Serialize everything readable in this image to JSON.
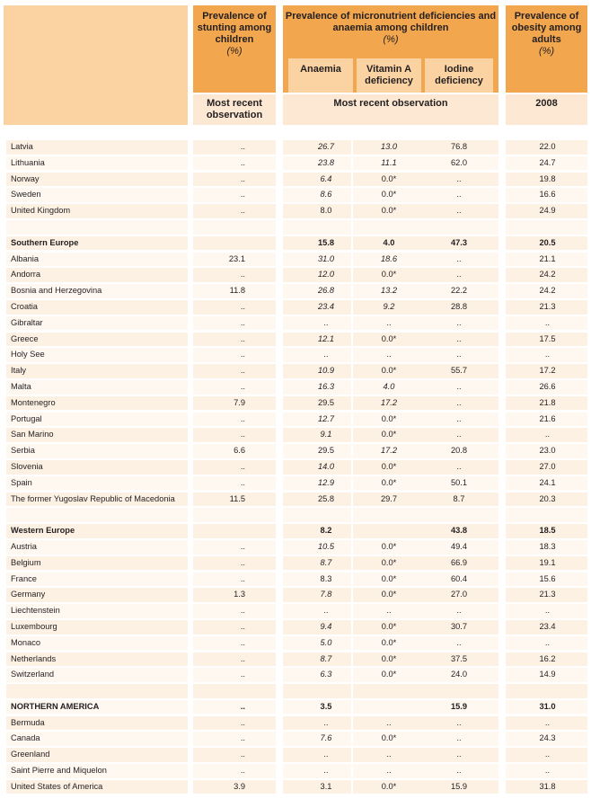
{
  "headers": {
    "stunting": {
      "title": "Prevalence of stunting among children",
      "unit": "(%)",
      "obs": "Most recent observation"
    },
    "micro": {
      "title": "Prevalence of micronutrient deficiencies and anaemia among children",
      "unit": "(%)",
      "obs": "Most recent observation",
      "sub": [
        "Anaemia",
        "Vitamin A deficiency",
        "Iodine deficiency"
      ]
    },
    "obesity": {
      "title": "Prevalence of obesity among adults",
      "unit": "(%)",
      "obs": "2008"
    }
  },
  "rows": [
    {
      "name": "Latvia",
      "stunt": "..",
      "an": "26.7",
      "an_i": true,
      "va": "13.0",
      "va_i": true,
      "io": "76.8",
      "ob": "22.0"
    },
    {
      "name": "Lithuania",
      "stunt": "..",
      "an": "23.8",
      "an_i": true,
      "va": "11.1",
      "va_i": true,
      "io": "62.0",
      "ob": "24.7"
    },
    {
      "name": "Norway",
      "stunt": "..",
      "an": "6.4",
      "an_i": true,
      "va": "0.0*",
      "io": "..",
      "ob": "19.8"
    },
    {
      "name": "Sweden",
      "stunt": "..",
      "an": "8.6",
      "an_i": true,
      "va": "0.0*",
      "io": "..",
      "ob": "16.6"
    },
    {
      "name": "United Kingdom",
      "stunt": "..",
      "an": "8.0",
      "va": "0.0*",
      "io": "..",
      "ob": "24.9"
    },
    {
      "name": "",
      "stunt": "",
      "an": "",
      "va": "",
      "io": "",
      "ob": ""
    },
    {
      "name": "Southern Europe",
      "bold": true,
      "stunt": "",
      "an": "15.8",
      "va": "4.0",
      "io": "47.3",
      "ob": "20.5"
    },
    {
      "name": "Albania",
      "stunt": "23.1",
      "an": "31.0",
      "an_i": true,
      "va": "18.6",
      "va_i": true,
      "io": "..",
      "ob": "21.1"
    },
    {
      "name": "Andorra",
      "stunt": "..",
      "an": "12.0",
      "an_i": true,
      "va": "0.0*",
      "io": "..",
      "ob": "24.2"
    },
    {
      "name": "Bosnia and Herzegovina",
      "stunt": "11.8",
      "an": "26.8",
      "an_i": true,
      "va": "13.2",
      "va_i": true,
      "io": "22.2",
      "ob": "24.2"
    },
    {
      "name": "Croatia",
      "stunt": "..",
      "an": "23.4",
      "an_i": true,
      "va": "9.2",
      "va_i": true,
      "io": "28.8",
      "ob": "21.3"
    },
    {
      "name": "Gibraltar",
      "stunt": "..",
      "an": "..",
      "va": "..",
      "io": "..",
      "ob": ".."
    },
    {
      "name": "Greece",
      "stunt": "..",
      "an": "12.1",
      "an_i": true,
      "va": "0.0*",
      "io": "..",
      "ob": "17.5"
    },
    {
      "name": "Holy See",
      "stunt": "..",
      "an": "..",
      "va": "..",
      "io": "..",
      "ob": ".."
    },
    {
      "name": "Italy",
      "stunt": "..",
      "an": "10.9",
      "an_i": true,
      "va": "0.0*",
      "io": "55.7",
      "ob": "17.2"
    },
    {
      "name": "Malta",
      "stunt": "..",
      "an": "16.3",
      "an_i": true,
      "va": "4.0",
      "va_i": true,
      "io": "..",
      "ob": "26.6"
    },
    {
      "name": "Montenegro",
      "stunt": "7.9",
      "an": "29.5",
      "va": "17.2",
      "va_i": true,
      "io": "..",
      "ob": "21.8"
    },
    {
      "name": "Portugal",
      "stunt": "..",
      "an": "12.7",
      "an_i": true,
      "va": "0.0*",
      "io": "..",
      "ob": "21.6"
    },
    {
      "name": "San Marino",
      "stunt": "..",
      "an": "9.1",
      "an_i": true,
      "va": "0.0*",
      "io": "..",
      "ob": ".."
    },
    {
      "name": "Serbia",
      "stunt": "6.6",
      "an": "29.5",
      "va": "17.2",
      "va_i": true,
      "io": "20.8",
      "ob": "23.0"
    },
    {
      "name": "Slovenia",
      "stunt": "..",
      "an": "14.0",
      "an_i": true,
      "va": "0.0*",
      "io": "..",
      "ob": "27.0"
    },
    {
      "name": "Spain",
      "stunt": "..",
      "an": "12.9",
      "an_i": true,
      "va": "0.0*",
      "io": "50.1",
      "ob": "24.1"
    },
    {
      "name": "The former Yugoslav Republic of Macedonia",
      "stunt": "11.5",
      "an": "25.8",
      "va": "29.7",
      "io": "8.7",
      "ob": "20.3"
    },
    {
      "name": "",
      "stunt": "",
      "an": "",
      "va": "",
      "io": "",
      "ob": ""
    },
    {
      "name": "Western Europe",
      "bold": true,
      "stunt": "",
      "an": "8.2",
      "va": "",
      "io": "43.8",
      "ob": "18.5"
    },
    {
      "name": "Austria",
      "stunt": "..",
      "an": "10.5",
      "an_i": true,
      "va": "0.0*",
      "io": "49.4",
      "ob": "18.3"
    },
    {
      "name": "Belgium",
      "stunt": "..",
      "an": "8.7",
      "an_i": true,
      "va": "0.0*",
      "io": "66.9",
      "ob": "19.1"
    },
    {
      "name": "France",
      "stunt": "..",
      "an": "8.3",
      "va": "0.0*",
      "io": "60.4",
      "ob": "15.6"
    },
    {
      "name": "Germany",
      "stunt": "1.3",
      "an": "7.8",
      "an_i": true,
      "va": "0.0*",
      "io": "27.0",
      "ob": "21.3"
    },
    {
      "name": "Liechtenstein",
      "stunt": "..",
      "an": "..",
      "va": "..",
      "io": "..",
      "ob": ".."
    },
    {
      "name": "Luxembourg",
      "stunt": "..",
      "an": "9.4",
      "an_i": true,
      "va": "0.0*",
      "io": "30.7",
      "ob": "23.4"
    },
    {
      "name": "Monaco",
      "stunt": "..",
      "an": "5.0",
      "an_i": true,
      "va": "0.0*",
      "io": "..",
      "ob": ".."
    },
    {
      "name": "Netherlands",
      "stunt": "..",
      "an": "8.7",
      "an_i": true,
      "va": "0.0*",
      "io": "37.5",
      "ob": "16.2"
    },
    {
      "name": "Switzerland",
      "stunt": "..",
      "an": "6.3",
      "an_i": true,
      "va": "0.0*",
      "io": "24.0",
      "ob": "14.9"
    },
    {
      "name": "",
      "stunt": "",
      "an": "",
      "va": "",
      "io": "",
      "ob": ""
    },
    {
      "name": "NORTHERN AMERICA",
      "bold": true,
      "stunt": "..",
      "an": "3.5",
      "va": "",
      "io": "15.9",
      "ob": "31.0"
    },
    {
      "name": "Bermuda",
      "stunt": "..",
      "an": "..",
      "va": "..",
      "io": "..",
      "ob": ".."
    },
    {
      "name": "Canada",
      "stunt": "..",
      "an": "7.6",
      "an_i": true,
      "va": "0.0*",
      "io": "..",
      "ob": "24.3"
    },
    {
      "name": "Greenland",
      "stunt": "..",
      "an": "..",
      "va": "..",
      "io": "..",
      "ob": ".."
    },
    {
      "name": "Saint Pierre and Miquelon",
      "stunt": "..",
      "an": "..",
      "va": "..",
      "io": "..",
      "ob": ".."
    },
    {
      "name": "United States of America",
      "stunt": "3.9",
      "an": "3.1",
      "va": "0.0*",
      "io": "15.9",
      "ob": "31.8"
    }
  ]
}
